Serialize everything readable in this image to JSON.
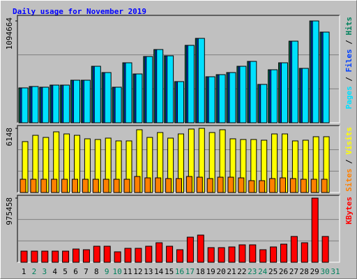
{
  "chart_data": [
    {
      "type": "bar",
      "title": "Daily usage for November 2019",
      "categories": [
        "1",
        "2",
        "3",
        "4",
        "5",
        "6",
        "7",
        "8",
        "9",
        "10",
        "11",
        "12",
        "13",
        "14",
        "15",
        "16",
        "17",
        "18",
        "19",
        "20",
        "21",
        "22",
        "23",
        "24",
        "25",
        "26",
        "27",
        "28",
        "29",
        "30",
        "31"
      ],
      "category_colors": [
        "#000000",
        "#00805c",
        "#00805c",
        "#000000",
        "#000000",
        "#000000",
        "#000000",
        "#000000",
        "#00805c",
        "#00805c",
        "#000000",
        "#000000",
        "#000000",
        "#000000",
        "#000000",
        "#00805c",
        "#00805c",
        "#000000",
        "#000000",
        "#000000",
        "#000000",
        "#000000",
        "#00805c",
        "#00805c",
        "#000000",
        "#000000",
        "#000000",
        "#000000",
        "#000000",
        "#00805c",
        "#00805c"
      ],
      "legend_separator": " / ",
      "series": [
        {
          "name": "Hits",
          "color": "#00805c",
          "values": [
            374900,
            389900,
            382400,
            404900,
            404900,
            457400,
            457400,
            607300,
            539800,
            382400,
            644800,
            524800,
            712300,
            787200,
            719800,
            442400,
            832200,
            907200,
            494800,
            517300,
            539800,
            607300,
            659800,
            412400,
            569800,
            644800,
            877200,
            584800,
            1094664,
            974700,
            null
          ]
        },
        {
          "name": "Files",
          "color": "#0040ff",
          "values": [
            374900,
            389900,
            382400,
            404900,
            404900,
            457400,
            457400,
            607300,
            539800,
            382400,
            644800,
            524800,
            712300,
            787200,
            719800,
            442400,
            832200,
            907200,
            494800,
            517300,
            539800,
            607300,
            659800,
            412400,
            569800,
            644800,
            877200,
            584800,
            1094664,
            974700,
            null
          ]
        },
        {
          "name": "Pages",
          "color": "#00e0ff",
          "values": [
            374900,
            389900,
            382400,
            404900,
            404900,
            457400,
            457400,
            607300,
            539800,
            382400,
            644800,
            524800,
            712300,
            787200,
            719800,
            442400,
            832200,
            907200,
            494800,
            517300,
            539800,
            607300,
            659800,
            412400,
            569800,
            644800,
            877200,
            584800,
            1094664,
            974700,
            null
          ]
        }
      ],
      "ylim": [
        0,
        1094664
      ],
      "yticks": [
        1094664
      ]
    },
    {
      "type": "bar",
      "categories": [
        "1",
        "2",
        "3",
        "4",
        "5",
        "6",
        "7",
        "8",
        "9",
        "10",
        "11",
        "12",
        "13",
        "14",
        "15",
        "16",
        "17",
        "18",
        "19",
        "20",
        "21",
        "22",
        "23",
        "24",
        "25",
        "26",
        "27",
        "28",
        "29",
        "30",
        "31"
      ],
      "legend_separator": " / ",
      "series": [
        {
          "name": "Visits",
          "color": "#ffff00",
          "values": [
            4878,
            5480,
            5279,
            5814,
            5613,
            5480,
            5146,
            5079,
            5212,
            4945,
            4945,
            6014,
            5279,
            5747,
            5212,
            5613,
            6081,
            6148,
            5747,
            6014,
            5146,
            5079,
            5079,
            5012,
            5613,
            5613,
            4945,
            5012,
            5346,
            5346,
            null
          ]
        },
        {
          "name": "Sites",
          "color": "#ff8000",
          "values": [
            1270,
            1270,
            1270,
            1270,
            1270,
            1270,
            1270,
            1270,
            1270,
            1270,
            1270,
            1537,
            1404,
            1404,
            1337,
            1337,
            1537,
            1470,
            1337,
            1470,
            1470,
            1404,
            1136,
            1136,
            1337,
            1404,
            1337,
            1270,
            1270,
            1270,
            null
          ]
        }
      ],
      "ylim": [
        0,
        6148
      ],
      "yticks": [
        6148
      ]
    },
    {
      "type": "bar",
      "categories": [
        "1",
        "2",
        "3",
        "4",
        "5",
        "6",
        "7",
        "8",
        "9",
        "10",
        "11",
        "12",
        "13",
        "14",
        "15",
        "16",
        "17",
        "18",
        "19",
        "20",
        "21",
        "22",
        "23",
        "24",
        "25",
        "26",
        "27",
        "28",
        "29",
        "30",
        "31"
      ],
      "series": [
        {
          "name": "KBytes",
          "color": "#ff0000",
          "values": [
            169650,
            169650,
            169650,
            169650,
            169650,
            201450,
            190850,
            243860,
            243860,
            159040,
            212060,
            212060,
            243860,
            296880,
            243860,
            190850,
            381700,
            413510,
            222660,
            222660,
            233260,
            265070,
            265070,
            190850,
            233260,
            275670,
            392300,
            296880,
            975458,
            392300,
            null
          ]
        }
      ],
      "ylim": [
        0,
        975458
      ],
      "yticks": [
        975458
      ]
    }
  ]
}
